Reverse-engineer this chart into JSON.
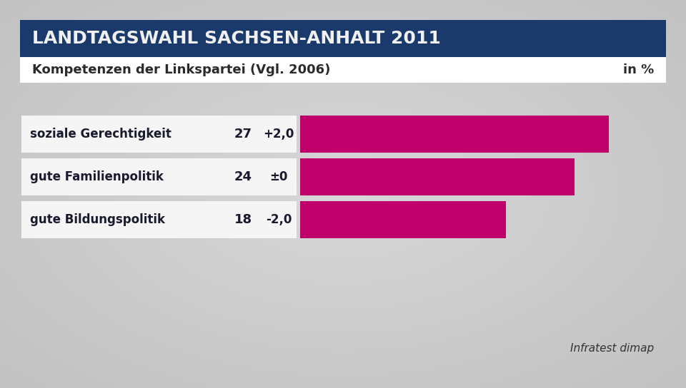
{
  "title_main": "LANDTAGSWAHL SACHSEN-ANHALT 2011",
  "title_sub": "Kompetenzen der Linkspartei (Vgl. 2006)",
  "title_right": "in %",
  "source": "Infratest dimap",
  "categories": [
    "soziale Gerechtigkeit",
    "gute Familienpolitik",
    "gute Bildungspolitik"
  ],
  "values": [
    27,
    24,
    18
  ],
  "changes": [
    "+2,0",
    "±0",
    "-2,0"
  ],
  "bar_color": "#c0006a",
  "title_bg_color": "#1a3a6b",
  "title_text_color": "#f0f0f0",
  "subtitle_bg_color": "#ffffff",
  "subtitle_text_color": "#2a2a2a",
  "background_color": "#c8c8c8",
  "label_bg_color": "#f5f5f5",
  "max_value": 30,
  "fig_width": 9.6,
  "fig_height": 5.44,
  "dpi": 100
}
